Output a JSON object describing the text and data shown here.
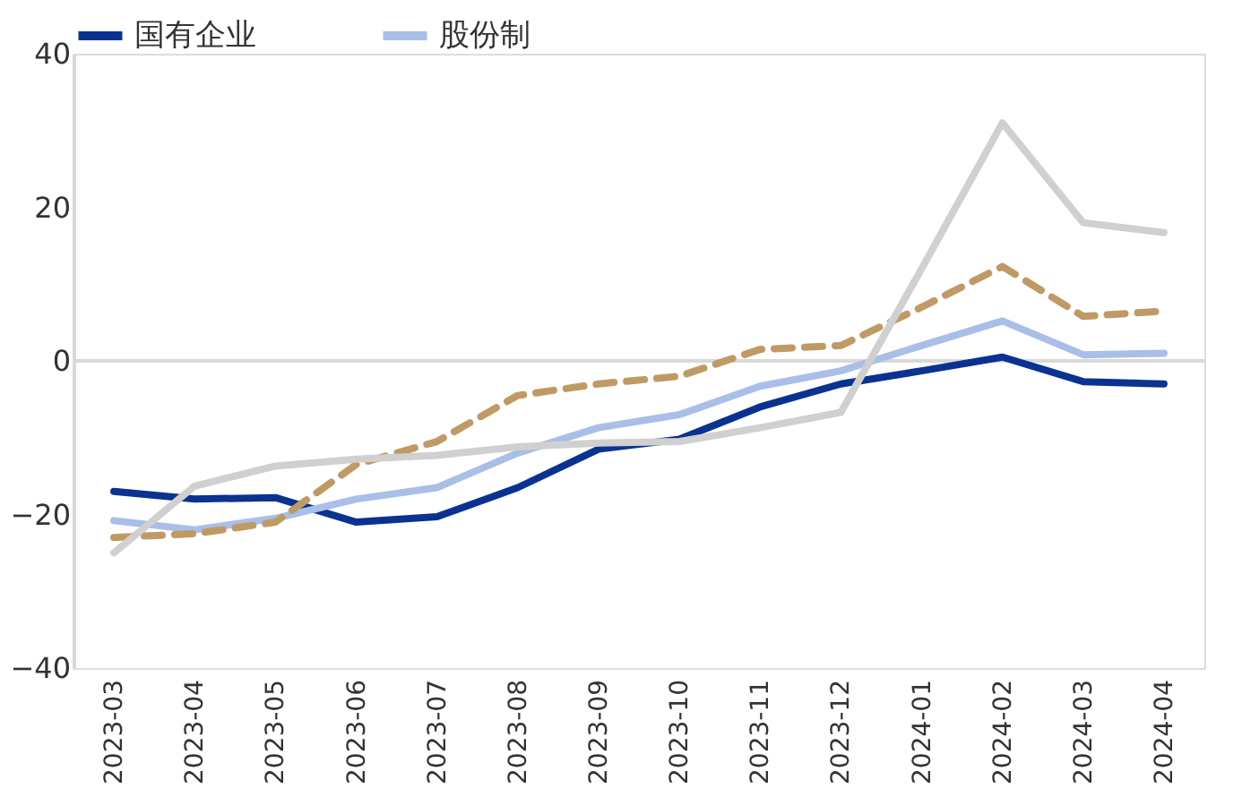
{
  "chart_data": {
    "type": "line",
    "categories": [
      "2023-03",
      "2023-04",
      "2023-05",
      "2023-06",
      "2023-07",
      "2023-08",
      "2023-09",
      "2023-10",
      "2023-11",
      "2023-12",
      "2024-01",
      "2024-02",
      "2024-03",
      "2024-04"
    ],
    "series": [
      {
        "name": "国有企业",
        "color": "#0a3291",
        "values": [
          -17,
          -18,
          -17.8,
          -21,
          -20.3,
          -16.5,
          -11.5,
          -10.2,
          -6,
          -3,
          -1.3,
          0.5,
          -2.7,
          -3
        ]
      },
      {
        "name": "股份制",
        "color": "#a9bfe8",
        "values": [
          -20.8,
          -22,
          -20.5,
          -18,
          -16.5,
          -12,
          -8.7,
          -7,
          -3.3,
          -1.3,
          2,
          5.2,
          0.8,
          1
        ]
      },
      {
        "color": "#c09a64",
        "line_style": "dashed",
        "values": [
          -23,
          -22.5,
          -21,
          -13.5,
          -10.5,
          -4.5,
          -3,
          -2,
          1.5,
          2,
          7,
          12.3,
          5.8,
          6.5
        ]
      },
      {
        "color": "#d0d0d0",
        "values": [
          -25,
          -16.3,
          -13.7,
          -12.8,
          -12.3,
          -11.2,
          -10.7,
          -10.5,
          -8.7,
          -6.7,
          12,
          31,
          18,
          16.7
        ]
      }
    ],
    "ylim": [
      -40,
      40
    ],
    "yticks": [
      -40,
      -20,
      0,
      20,
      40
    ],
    "ref_lines": [
      {
        "axis": "y",
        "value": 0,
        "color": "#d9d9d9"
      }
    ],
    "grid": false,
    "legend": "top",
    "marker": "none",
    "line_style": "solid"
  }
}
